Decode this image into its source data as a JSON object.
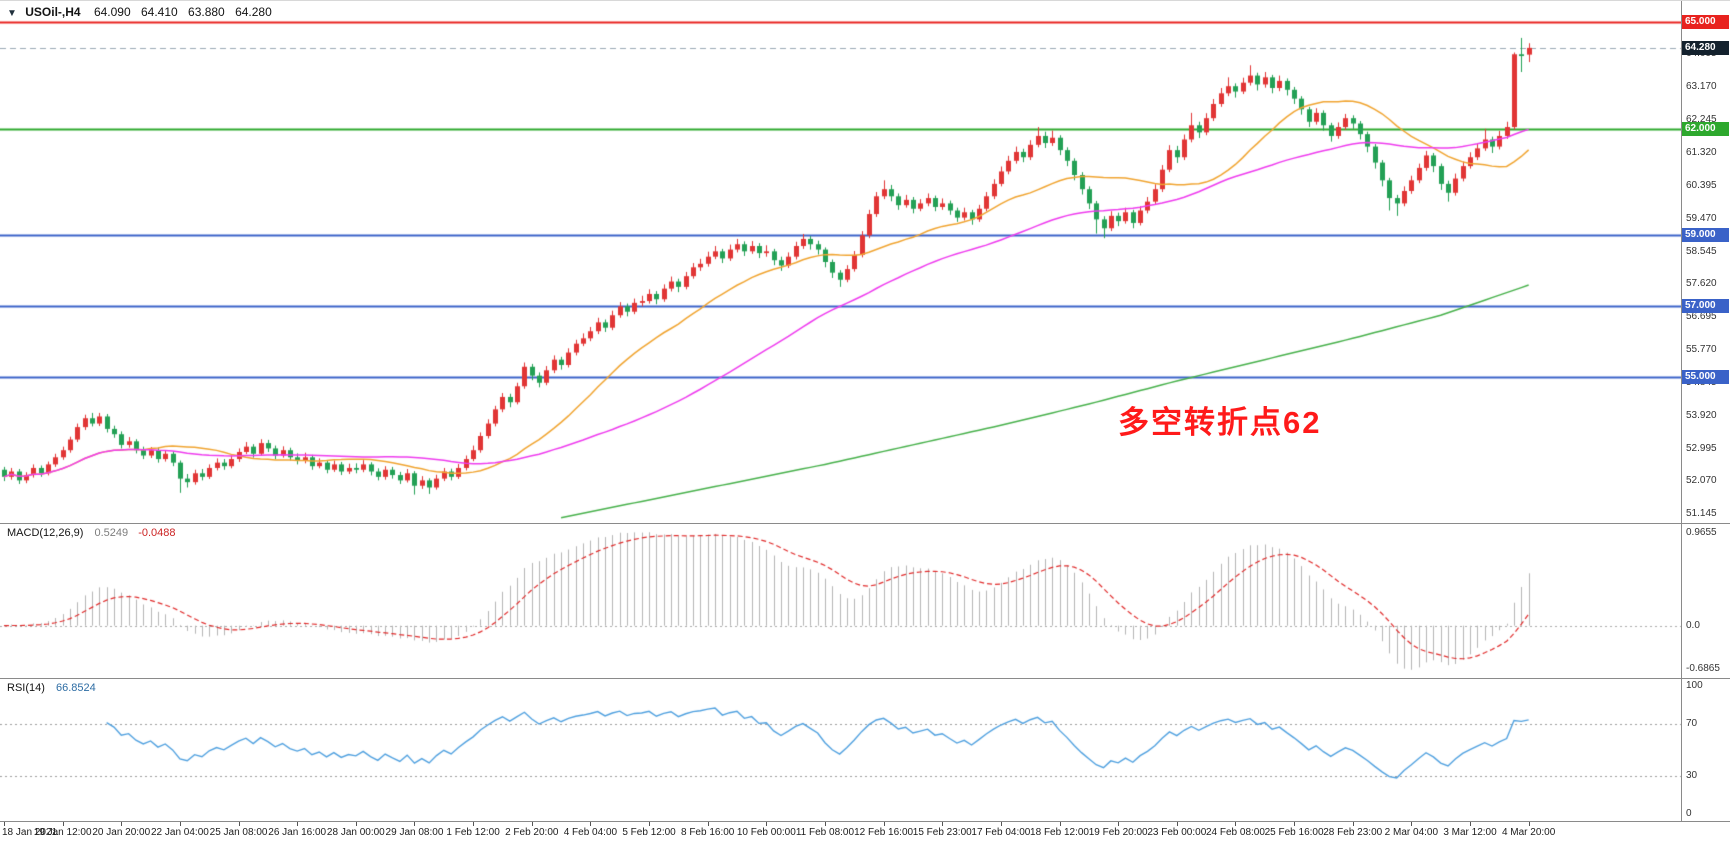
{
  "header": {
    "dropdown_icon": "▼",
    "symbol_period": "USOil-,H4",
    "open": "64.090",
    "high": "64.410",
    "low": "63.880",
    "close": "64.280"
  },
  "annotation": {
    "text": "多空转折点62",
    "color": "#FF1A1A"
  },
  "price_axis": {
    "ticks": [
      "64.095",
      "63.170",
      "62.245",
      "61.320",
      "60.395",
      "59.470",
      "58.545",
      "57.620",
      "56.695",
      "55.770",
      "54.845",
      "53.920",
      "52.995",
      "52.070",
      "51.145"
    ],
    "badges": [
      {
        "text": "65.000",
        "price": 65.0,
        "bg": "#E8221E",
        "fg": "#FFFFFF",
        "line_color": "#E8221E",
        "line_style": "solid",
        "line_width": 2
      },
      {
        "text": "64.280",
        "price": 64.28,
        "bg": "#13212D",
        "fg": "#FFFFFF",
        "line_color": "#9AA8B5",
        "line_style": "dashed",
        "line_width": 1
      },
      {
        "text": "62.000",
        "price": 62.0,
        "bg": "#2DA82D",
        "fg": "#FFFFFF",
        "line_color": "#2DA82D",
        "line_style": "solid",
        "line_width": 2
      },
      {
        "text": "59.000",
        "price": 59.0,
        "bg": "#3A62C8",
        "fg": "#FFFFFF",
        "line_color": "#3A62C8",
        "line_style": "solid",
        "line_width": 2
      },
      {
        "text": "57.000",
        "price": 57.0,
        "bg": "#3A62C8",
        "fg": "#FFFFFF",
        "line_color": "#3A62C8",
        "line_style": "solid",
        "line_width": 2
      },
      {
        "text": "55.000",
        "price": 55.0,
        "bg": "#3A62C8",
        "fg": "#FFFFFF",
        "line_color": "#3A62C8",
        "line_style": "solid",
        "line_width": 2
      }
    ]
  },
  "chart_data": {
    "type": "candlestick",
    "title": "USOil-,H4",
    "ylim": [
      50.9,
      65.6
    ],
    "up_color": "#E13535",
    "down_color": "#23A055",
    "tick_step": 8,
    "x_labels": [
      "18 Jan 2021",
      "19 Jan 12:00",
      "20 Jan 20:00",
      "22 Jan 04:00",
      "25 Jan 08:00",
      "26 Jan 16:00",
      "28 Jan 00:00",
      "29 Jan 08:00",
      "1 Feb 12:00",
      "2 Feb 20:00",
      "4 Feb 04:00",
      "5 Feb 12:00",
      "8 Feb 16:00",
      "10 Feb 00:00",
      "11 Feb 08:00",
      "12 Feb 16:00",
      "15 Feb 23:00",
      "17 Feb 04:00",
      "18 Feb 12:00",
      "19 Feb 20:00",
      "23 Feb 00:00",
      "24 Feb 08:00",
      "25 Feb 16:00",
      "28 Feb 23:00",
      "2 Mar 04:00",
      "3 Mar 12:00",
      "4 Mar 20:00"
    ],
    "candles_ohlc": [
      [
        52.4,
        52.48,
        52.08,
        52.2
      ],
      [
        52.2,
        52.45,
        52.12,
        52.35
      ],
      [
        52.35,
        52.42,
        52.0,
        52.1
      ],
      [
        52.1,
        52.33,
        52.02,
        52.25
      ],
      [
        52.25,
        52.55,
        52.18,
        52.45
      ],
      [
        52.45,
        52.52,
        52.2,
        52.3
      ],
      [
        52.3,
        52.63,
        52.24,
        52.55
      ],
      [
        52.55,
        52.85,
        52.48,
        52.75
      ],
      [
        52.75,
        53.05,
        52.68,
        52.95
      ],
      [
        52.95,
        53.33,
        52.88,
        53.25
      ],
      [
        53.25,
        53.7,
        53.18,
        53.6
      ],
      [
        53.6,
        53.95,
        53.52,
        53.85
      ],
      [
        53.85,
        54.0,
        53.62,
        53.7
      ],
      [
        53.7,
        54.0,
        53.63,
        53.9
      ],
      [
        53.9,
        53.97,
        53.45,
        53.55
      ],
      [
        53.55,
        53.64,
        53.3,
        53.4
      ],
      [
        53.4,
        53.48,
        53.0,
        53.1
      ],
      [
        53.1,
        53.32,
        53.02,
        53.2
      ],
      [
        53.2,
        53.26,
        52.86,
        52.95
      ],
      [
        52.95,
        53.05,
        52.7,
        52.8
      ],
      [
        52.8,
        53.04,
        52.73,
        52.95
      ],
      [
        52.95,
        53.02,
        52.6,
        52.7
      ],
      [
        52.7,
        52.95,
        52.63,
        52.85
      ],
      [
        52.85,
        52.92,
        52.5,
        52.6
      ],
      [
        52.6,
        52.66,
        51.75,
        52.15
      ],
      [
        52.15,
        52.28,
        51.9,
        52.05
      ],
      [
        52.05,
        52.4,
        51.98,
        52.3
      ],
      [
        52.3,
        52.42,
        52.1,
        52.2
      ],
      [
        52.2,
        52.55,
        52.14,
        52.45
      ],
      [
        52.45,
        52.72,
        52.38,
        52.6
      ],
      [
        52.6,
        52.7,
        52.4,
        52.5
      ],
      [
        52.5,
        52.8,
        52.44,
        52.7
      ],
      [
        52.7,
        53.0,
        52.62,
        52.9
      ],
      [
        52.9,
        53.18,
        52.84,
        53.05
      ],
      [
        53.05,
        53.12,
        52.74,
        52.85
      ],
      [
        52.85,
        53.26,
        52.8,
        53.15
      ],
      [
        53.15,
        53.24,
        52.9,
        53.0
      ],
      [
        53.0,
        53.08,
        52.7,
        52.8
      ],
      [
        52.8,
        53.06,
        52.74,
        52.95
      ],
      [
        52.95,
        53.02,
        52.66,
        52.75
      ],
      [
        52.75,
        52.86,
        52.55,
        52.65
      ],
      [
        52.65,
        52.88,
        52.58,
        52.75
      ],
      [
        52.75,
        52.82,
        52.4,
        52.5
      ],
      [
        52.5,
        52.72,
        52.44,
        52.6
      ],
      [
        52.6,
        52.67,
        52.3,
        52.4
      ],
      [
        52.4,
        52.66,
        52.34,
        52.55
      ],
      [
        52.55,
        52.62,
        52.25,
        52.35
      ],
      [
        52.35,
        52.57,
        52.28,
        52.45
      ],
      [
        52.45,
        52.58,
        52.3,
        52.4
      ],
      [
        52.4,
        52.67,
        52.33,
        52.55
      ],
      [
        52.55,
        52.61,
        52.24,
        52.35
      ],
      [
        52.35,
        52.44,
        52.1,
        52.2
      ],
      [
        52.2,
        52.5,
        52.12,
        52.4
      ],
      [
        52.4,
        52.48,
        52.15,
        52.25
      ],
      [
        52.25,
        52.34,
        52.0,
        52.1
      ],
      [
        52.1,
        52.42,
        52.04,
        52.3
      ],
      [
        52.3,
        52.36,
        51.7,
        51.95
      ],
      [
        51.95,
        52.22,
        51.86,
        52.1
      ],
      [
        52.1,
        52.16,
        51.72,
        51.9
      ],
      [
        51.9,
        52.26,
        51.84,
        52.15
      ],
      [
        52.15,
        52.45,
        52.08,
        52.35
      ],
      [
        52.35,
        52.43,
        52.1,
        52.2
      ],
      [
        52.2,
        52.56,
        52.14,
        52.45
      ],
      [
        52.45,
        52.8,
        52.38,
        52.7
      ],
      [
        52.7,
        53.08,
        52.64,
        52.95
      ],
      [
        52.95,
        53.45,
        52.88,
        53.35
      ],
      [
        53.35,
        53.82,
        53.28,
        53.7
      ],
      [
        53.7,
        54.2,
        53.62,
        54.1
      ],
      [
        54.1,
        54.56,
        54.02,
        54.45
      ],
      [
        54.45,
        54.54,
        54.16,
        54.3
      ],
      [
        54.3,
        54.85,
        54.24,
        54.75
      ],
      [
        54.75,
        55.42,
        54.68,
        55.3
      ],
      [
        55.3,
        55.38,
        54.92,
        55.05
      ],
      [
        55.05,
        55.14,
        54.72,
        54.85
      ],
      [
        54.85,
        55.32,
        54.78,
        55.2
      ],
      [
        55.2,
        55.62,
        55.12,
        55.5
      ],
      [
        55.5,
        55.58,
        55.22,
        55.35
      ],
      [
        55.35,
        55.82,
        55.28,
        55.7
      ],
      [
        55.7,
        56.06,
        55.62,
        55.95
      ],
      [
        55.95,
        56.24,
        55.88,
        56.1
      ],
      [
        56.1,
        56.42,
        56.02,
        56.3
      ],
      [
        56.3,
        56.68,
        56.22,
        56.55
      ],
      [
        56.55,
        56.63,
        56.28,
        56.4
      ],
      [
        56.4,
        56.88,
        56.33,
        56.75
      ],
      [
        56.75,
        57.12,
        56.68,
        57.0
      ],
      [
        57.0,
        57.08,
        56.72,
        56.85
      ],
      [
        56.85,
        57.22,
        56.78,
        57.1
      ],
      [
        57.1,
        57.3,
        57.0,
        57.15
      ],
      [
        57.15,
        57.48,
        57.08,
        57.35
      ],
      [
        57.35,
        57.43,
        57.06,
        57.2
      ],
      [
        57.2,
        57.62,
        57.13,
        57.5
      ],
      [
        57.5,
        57.84,
        57.42,
        57.7
      ],
      [
        57.7,
        57.78,
        57.4,
        57.55
      ],
      [
        57.55,
        57.97,
        57.48,
        57.85
      ],
      [
        57.85,
        58.22,
        57.78,
        58.1
      ],
      [
        58.1,
        58.34,
        58.0,
        58.2
      ],
      [
        58.2,
        58.54,
        58.12,
        58.4
      ],
      [
        58.4,
        58.7,
        58.33,
        58.55
      ],
      [
        58.55,
        58.62,
        58.22,
        58.35
      ],
      [
        58.35,
        58.74,
        58.28,
        58.6
      ],
      [
        58.6,
        58.9,
        58.52,
        58.75
      ],
      [
        58.75,
        58.83,
        58.42,
        58.55
      ],
      [
        58.55,
        58.84,
        58.48,
        58.7
      ],
      [
        58.7,
        58.78,
        58.36,
        58.5
      ],
      [
        58.5,
        58.72,
        58.4,
        58.55
      ],
      [
        58.55,
        58.62,
        58.16,
        58.3
      ],
      [
        58.3,
        58.4,
        58.0,
        58.15
      ],
      [
        58.15,
        58.52,
        58.08,
        58.4
      ],
      [
        58.4,
        58.82,
        58.32,
        58.7
      ],
      [
        58.7,
        59.04,
        58.62,
        58.9
      ],
      [
        58.9,
        58.98,
        58.6,
        58.75
      ],
      [
        58.75,
        58.85,
        58.46,
        58.6
      ],
      [
        58.6,
        58.66,
        58.1,
        58.25
      ],
      [
        58.25,
        58.32,
        57.8,
        57.95
      ],
      [
        57.95,
        58.02,
        57.55,
        57.75
      ],
      [
        57.75,
        58.16,
        57.68,
        58.05
      ],
      [
        58.05,
        58.56,
        57.98,
        58.45
      ],
      [
        58.45,
        59.12,
        58.38,
        59.0
      ],
      [
        59.0,
        59.72,
        58.92,
        59.6
      ],
      [
        59.6,
        60.22,
        59.52,
        60.1
      ],
      [
        60.1,
        60.55,
        60.02,
        60.3
      ],
      [
        60.3,
        60.42,
        59.96,
        60.1
      ],
      [
        60.1,
        60.18,
        59.72,
        59.85
      ],
      [
        59.85,
        60.14,
        59.78,
        60.0
      ],
      [
        60.0,
        60.08,
        59.62,
        59.75
      ],
      [
        59.75,
        60.02,
        59.68,
        59.9
      ],
      [
        59.9,
        60.18,
        59.82,
        60.05
      ],
      [
        60.05,
        60.12,
        59.68,
        59.8
      ],
      [
        59.8,
        60.04,
        59.72,
        59.9
      ],
      [
        59.9,
        59.98,
        59.58,
        59.7
      ],
      [
        59.7,
        59.78,
        59.38,
        59.5
      ],
      [
        59.5,
        59.78,
        59.42,
        59.65
      ],
      [
        59.65,
        59.72,
        59.3,
        59.45
      ],
      [
        59.45,
        59.86,
        59.38,
        59.75
      ],
      [
        59.75,
        60.22,
        59.68,
        60.1
      ],
      [
        60.1,
        60.58,
        60.02,
        60.45
      ],
      [
        60.45,
        60.94,
        60.38,
        60.8
      ],
      [
        60.8,
        61.24,
        60.72,
        61.1
      ],
      [
        61.1,
        61.5,
        61.02,
        61.35
      ],
      [
        61.35,
        61.44,
        61.06,
        61.2
      ],
      [
        61.2,
        61.68,
        61.12,
        61.55
      ],
      [
        61.55,
        62.05,
        61.48,
        61.8
      ],
      [
        61.8,
        61.92,
        61.46,
        61.6
      ],
      [
        61.6,
        61.95,
        61.52,
        61.75
      ],
      [
        61.75,
        61.82,
        61.26,
        61.4
      ],
      [
        61.4,
        61.48,
        60.95,
        61.1
      ],
      [
        61.1,
        61.17,
        60.55,
        60.7
      ],
      [
        60.7,
        60.78,
        60.15,
        60.3
      ],
      [
        60.3,
        60.38,
        59.74,
        59.9
      ],
      [
        59.9,
        59.97,
        59.05,
        59.45
      ],
      [
        59.45,
        59.54,
        58.92,
        59.2
      ],
      [
        59.2,
        59.68,
        59.12,
        59.55
      ],
      [
        59.55,
        59.64,
        59.26,
        59.4
      ],
      [
        59.4,
        59.78,
        59.33,
        59.65
      ],
      [
        59.65,
        59.72,
        59.2,
        59.35
      ],
      [
        59.35,
        59.82,
        59.28,
        59.7
      ],
      [
        59.7,
        60.08,
        59.62,
        59.95
      ],
      [
        59.95,
        60.44,
        59.88,
        60.3
      ],
      [
        60.3,
        60.98,
        60.22,
        60.85
      ],
      [
        60.85,
        61.54,
        60.78,
        61.4
      ],
      [
        61.4,
        61.52,
        61.04,
        61.2
      ],
      [
        61.2,
        61.84,
        61.12,
        61.7
      ],
      [
        61.7,
        62.45,
        61.62,
        62.1
      ],
      [
        62.1,
        62.2,
        61.74,
        61.9
      ],
      [
        61.9,
        62.44,
        61.82,
        62.3
      ],
      [
        62.3,
        62.84,
        62.22,
        62.7
      ],
      [
        62.7,
        63.15,
        62.62,
        63.0
      ],
      [
        63.0,
        63.45,
        62.92,
        63.2
      ],
      [
        63.2,
        63.28,
        62.88,
        63.05
      ],
      [
        63.05,
        63.44,
        62.98,
        63.3
      ],
      [
        63.3,
        63.79,
        63.22,
        63.5
      ],
      [
        63.5,
        63.58,
        63.08,
        63.25
      ],
      [
        63.25,
        63.6,
        63.16,
        63.45
      ],
      [
        63.45,
        63.52,
        63.0,
        63.15
      ],
      [
        63.15,
        63.5,
        63.06,
        63.35
      ],
      [
        63.35,
        63.42,
        62.94,
        63.1
      ],
      [
        63.1,
        63.18,
        62.7,
        62.85
      ],
      [
        62.85,
        62.92,
        62.4,
        62.55
      ],
      [
        62.55,
        62.62,
        62.05,
        62.2
      ],
      [
        62.2,
        62.58,
        62.12,
        62.45
      ],
      [
        62.45,
        62.52,
        61.95,
        62.1
      ],
      [
        62.1,
        62.17,
        61.64,
        61.8
      ],
      [
        61.8,
        62.18,
        61.72,
        62.05
      ],
      [
        62.05,
        62.42,
        61.97,
        62.3
      ],
      [
        62.3,
        62.38,
        62.0,
        62.15
      ],
      [
        62.15,
        62.22,
        61.7,
        61.85
      ],
      [
        61.85,
        61.92,
        61.34,
        61.5
      ],
      [
        61.5,
        61.57,
        60.88,
        61.05
      ],
      [
        61.05,
        61.12,
        60.38,
        60.55
      ],
      [
        60.55,
        60.62,
        59.7,
        60.05
      ],
      [
        60.05,
        60.14,
        59.55,
        59.9
      ],
      [
        59.9,
        60.38,
        59.82,
        60.25
      ],
      [
        60.25,
        60.68,
        60.17,
        60.55
      ],
      [
        60.55,
        61.02,
        60.47,
        60.9
      ],
      [
        60.9,
        61.38,
        60.82,
        61.25
      ],
      [
        61.25,
        61.32,
        60.78,
        60.95
      ],
      [
        60.95,
        61.02,
        60.28,
        60.45
      ],
      [
        60.45,
        60.54,
        59.95,
        60.2
      ],
      [
        60.2,
        60.74,
        60.12,
        60.6
      ],
      [
        60.6,
        61.08,
        60.52,
        60.95
      ],
      [
        60.95,
        61.34,
        60.88,
        61.2
      ],
      [
        61.2,
        61.58,
        61.12,
        61.45
      ],
      [
        61.45,
        62.0,
        61.38,
        61.7
      ],
      [
        61.7,
        61.78,
        61.32,
        61.5
      ],
      [
        61.5,
        61.94,
        61.42,
        61.8
      ],
      [
        61.8,
        62.2,
        61.72,
        62.05
      ],
      [
        62.05,
        64.15,
        61.98,
        64.1
      ],
      [
        64.1,
        64.56,
        63.6,
        64.05
      ],
      [
        64.09,
        64.41,
        63.88,
        64.28
      ]
    ],
    "overlays": {
      "ma_fast": {
        "type": "sma",
        "period": 20,
        "color": "#F0A430"
      },
      "ma_mid": {
        "type": "sma",
        "period": 50,
        "color": "#EE3BEE"
      },
      "ma_slow": {
        "color": "#46B04A",
        "anchors": [
          [
            76,
            51.05
          ],
          [
            88,
            51.55
          ],
          [
            100,
            52.05
          ],
          [
            112,
            52.55
          ],
          [
            124,
            53.1
          ],
          [
            136,
            53.65
          ],
          [
            148,
            54.25
          ],
          [
            160,
            54.9
          ],
          [
            172,
            55.5
          ],
          [
            184,
            56.1
          ],
          [
            196,
            56.75
          ],
          [
            208,
            57.6
          ]
        ]
      }
    },
    "indicators": {
      "macd": {
        "label": "MACD(12,26,9)",
        "value_main": "0.5249",
        "value_signal": "-0.0488",
        "fast": 12,
        "slow": 26,
        "signal": 9,
        "hist_color": "#B4B4B4",
        "signal_color": "#E02A2A",
        "axis_labels": [
          "0.9655",
          "0.0",
          "-0.6865"
        ]
      },
      "rsi": {
        "label": "RSI(14)",
        "value": "66.8524",
        "period": 14,
        "color": "#4FA0DF",
        "levels": [
          70,
          30
        ],
        "axis_labels": [
          "100",
          "70",
          "30",
          "0"
        ]
      }
    }
  }
}
